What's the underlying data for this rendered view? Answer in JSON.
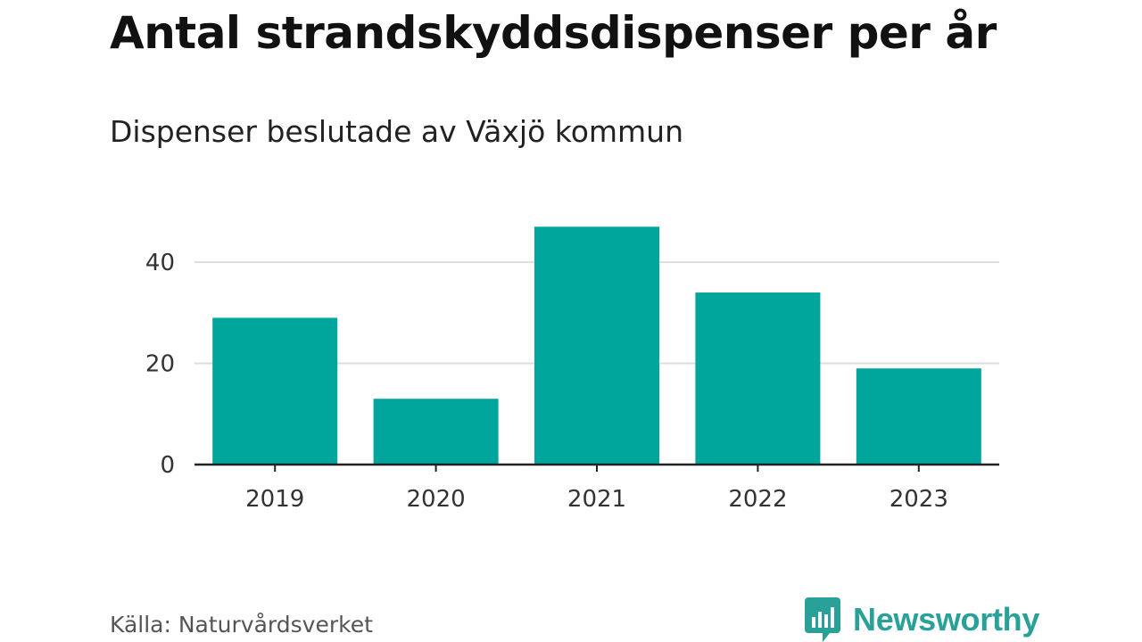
{
  "title": "Antal strandskyddsdispenser per år",
  "subtitle": "Dispenser beslutade av Växjö kommun",
  "source": "Källa: Naturvårdsverket",
  "brand": {
    "name": "Newsworthy",
    "icon": "newsworthy-logo-icon",
    "color": "#2aa198"
  },
  "colors": {
    "bar": "#00a69c",
    "grid": "#dddddd",
    "axis": "#222222"
  },
  "chart_data": {
    "type": "bar",
    "title": "Antal strandskyddsdispenser per år",
    "subtitle": "Dispenser beslutade av Växjö kommun",
    "categories": [
      "2019",
      "2020",
      "2021",
      "2022",
      "2023"
    ],
    "values": [
      29,
      13,
      47,
      34,
      19
    ],
    "xlabel": "",
    "ylabel": "",
    "ylim": [
      0,
      50
    ],
    "yticks": [
      0,
      20,
      40
    ],
    "grid": true
  }
}
